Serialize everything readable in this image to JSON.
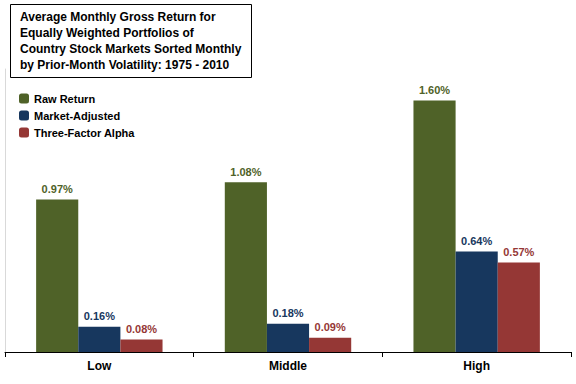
{
  "chart_data": {
    "type": "bar",
    "title": "Average Monthly Gross Return for\nEqually Weighted Portfolios of\nCountry Stock Markets Sorted Monthly\nby Prior-Month Volatility: 1975 - 2010",
    "categories": [
      "Low",
      "Middle",
      "High"
    ],
    "series": [
      {
        "name": "Raw Return",
        "color": "#4F6228",
        "values": [
          0.97,
          1.08,
          1.6
        ],
        "value_labels": [
          "0.97%",
          "1.08%",
          "1.60%"
        ]
      },
      {
        "name": "Market-Adjusted",
        "color": "#17375E",
        "values": [
          0.16,
          0.18,
          0.64
        ],
        "value_labels": [
          "0.16%",
          "0.18%",
          "0.64%"
        ]
      },
      {
        "name": "Three-Factor Alpha",
        "color": "#953735",
        "values": [
          0.08,
          0.09,
          0.57
        ],
        "value_labels": [
          "0.08%",
          "0.09%",
          "0.57%"
        ]
      }
    ],
    "ylim": [
      0,
      1.8
    ],
    "grid": false,
    "legend": "upper left",
    "data_labels": true,
    "tick_labels": "x"
  }
}
